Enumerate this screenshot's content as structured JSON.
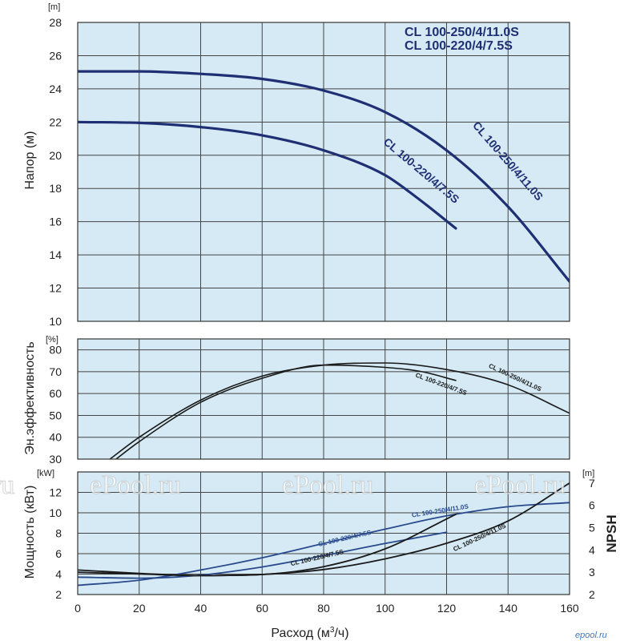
{
  "colors": {
    "plot_bg": "#d5eaf5",
    "grid": "#444444",
    "navy": "#1f2f73",
    "blue": "#2a4a8e",
    "black": "#1a1a1a"
  },
  "title_lines": [
    "CL 100-250/4/11.0S",
    "CL 100-220/4/7.5S"
  ],
  "brand": "epool.ru",
  "watermark": [
    "ePool.ru",
    "ePool.ru",
    "ePool.ru"
  ],
  "watermark_fragment": "ru",
  "chart_data": [
    {
      "type": "line",
      "panel": "head",
      "ylabel": "Напор (м)",
      "yunit": "[m]",
      "xlim": [
        0,
        160
      ],
      "ylim": [
        10,
        28
      ],
      "xticks": [
        0,
        20,
        40,
        60,
        80,
        100,
        120,
        140,
        160
      ],
      "yticks": [
        10,
        12,
        14,
        16,
        18,
        20,
        22,
        24,
        26,
        28
      ],
      "grid": true,
      "series": [
        {
          "name": "CL 100-250/4/11.0S",
          "color": "#1f2f73",
          "width": 3.2,
          "x": [
            0,
            20,
            40,
            60,
            80,
            100,
            120,
            140,
            160
          ],
          "y": [
            25.05,
            25.05,
            24.9,
            24.6,
            23.9,
            22.6,
            20.3,
            16.9,
            12.4
          ]
        },
        {
          "name": "CL 100-220/4/7.5S",
          "color": "#1f2f73",
          "width": 3.2,
          "x": [
            0,
            20,
            40,
            60,
            80,
            100,
            110,
            123
          ],
          "y": [
            22.0,
            21.95,
            21.7,
            21.2,
            20.3,
            18.8,
            17.5,
            15.6
          ]
        }
      ],
      "labels": [
        {
          "series": "CL 100-250/4/11.0S",
          "text": "CL 100-250/4/11.0S",
          "x": 139,
          "y": 19.5,
          "angle": 49,
          "size": 14
        },
        {
          "series": "CL 100-220/4/7.5S",
          "text": "CL 100-220/4/7.5S",
          "x": 111,
          "y": 18.9,
          "angle": 40,
          "size": 14
        }
      ]
    },
    {
      "type": "line",
      "panel": "efficiency",
      "ylabel": "Эн.эффективность",
      "yunit": "[%]",
      "xlim": [
        0,
        160
      ],
      "ylim": [
        30,
        85
      ],
      "xticks": [
        0,
        20,
        40,
        60,
        80,
        100,
        120,
        140,
        160
      ],
      "yticks": [
        30,
        40,
        50,
        60,
        70,
        80
      ],
      "grid": true,
      "series": [
        {
          "name": "CL 100-250/4/11.0S",
          "color": "#1a1a1a",
          "width": 1.6,
          "x": [
            10,
            20,
            40,
            60,
            80,
            100,
            120,
            140,
            160
          ],
          "y": [
            29.5,
            40,
            57,
            68,
            73,
            74,
            71,
            64,
            51
          ]
        },
        {
          "name": "CL 100-220/4/7.5S",
          "color": "#1a1a1a",
          "width": 1.6,
          "x": [
            12,
            20,
            40,
            60,
            80,
            100,
            112,
            123
          ],
          "y": [
            29.5,
            38,
            56,
            67,
            73,
            72,
            70,
            66
          ]
        }
      ],
      "labels": [
        {
          "series": "CL 100-250/4/11.0S",
          "text": "CL 100-250/4/11.0S",
          "x": 142,
          "y": 66.5,
          "angle": 25,
          "size": 8
        },
        {
          "series": "CL 100-220/4/7.5S",
          "text": "CL 100-220/4/7.5S",
          "x": 118,
          "y": 63.5,
          "angle": 20,
          "size": 8
        }
      ]
    },
    {
      "type": "line",
      "panel": "power-npsh",
      "ylabel": "Мощность (кВт)",
      "yunit": "[kW]",
      "y2label": "NPSH",
      "y2unit": "[m]",
      "xlabel_parts": [
        "Расход (м",
        "3",
        "/ч)"
      ],
      "xlim": [
        0,
        160
      ],
      "ylim": [
        2,
        14
      ],
      "y2lim": [
        2,
        7.5
      ],
      "xticks": [
        0,
        20,
        40,
        60,
        80,
        100,
        120,
        140,
        160
      ],
      "yticks": [
        2,
        4,
        6,
        8,
        10,
        12
      ],
      "y2ticks": [
        2,
        3,
        4,
        5,
        6,
        7
      ],
      "grid": true,
      "series": [
        {
          "name": "CL 100-250/4/11.0S",
          "axis": "left",
          "color": "#2a4a8e",
          "width": 1.8,
          "x": [
            0,
            20,
            40,
            60,
            80,
            100,
            120,
            140,
            160
          ],
          "y": [
            2.9,
            3.4,
            4.4,
            5.6,
            7.0,
            8.4,
            9.7,
            10.6,
            11.0
          ]
        },
        {
          "name": "CL 100-220/4/7.5S",
          "axis": "left",
          "color": "#2a4a8e",
          "width": 1.8,
          "x": [
            0,
            20,
            40,
            60,
            80,
            100,
            120
          ],
          "y": [
            3.7,
            3.6,
            3.9,
            4.7,
            5.8,
            7.0,
            8.1
          ]
        },
        {
          "name": "CL 100-250/4/11.0S",
          "axis": "right",
          "color": "#1a1a1a",
          "width": 1.8,
          "x": [
            0,
            20,
            40,
            60,
            80,
            100,
            120,
            140,
            160
          ],
          "y": [
            3.0,
            2.92,
            2.85,
            2.9,
            3.12,
            3.6,
            4.3,
            5.3,
            7.0
          ]
        },
        {
          "name": "CL 100-220/4/7.5S",
          "axis": "right",
          "color": "#1a1a1a",
          "width": 1.8,
          "x": [
            0,
            20,
            40,
            60,
            80,
            100,
            123
          ],
          "y": [
            3.1,
            2.95,
            2.85,
            2.9,
            3.25,
            4.05,
            5.6
          ]
        }
      ],
      "labels": [
        {
          "series": "CL 100-250/4/11.0S",
          "text": "CL 100-250/4/11.0S",
          "x": 118,
          "y": 10.0,
          "angle": -9,
          "size": 8,
          "color": "#2a4a8e"
        },
        {
          "series": "CL 100-220/4/7.5S",
          "text": "CL 100-220/4/7.5S",
          "x": 87,
          "y": 7.3,
          "angle": -13,
          "size": 8,
          "color": "#2a4a8e"
        },
        {
          "series": "CL 100-220/4/7.5S",
          "text": "CL 100-220/4/7.5S",
          "x": 78,
          "y": 5.4,
          "angle": -13,
          "size": 8,
          "color": "#1a1a1a"
        },
        {
          "series": "CL 100-250/4/11.0S",
          "text": "CL 100-250/4/11.0S",
          "x": 131,
          "y": 7.4,
          "angle": -25,
          "size": 8,
          "color": "#1a1a1a"
        }
      ]
    }
  ]
}
